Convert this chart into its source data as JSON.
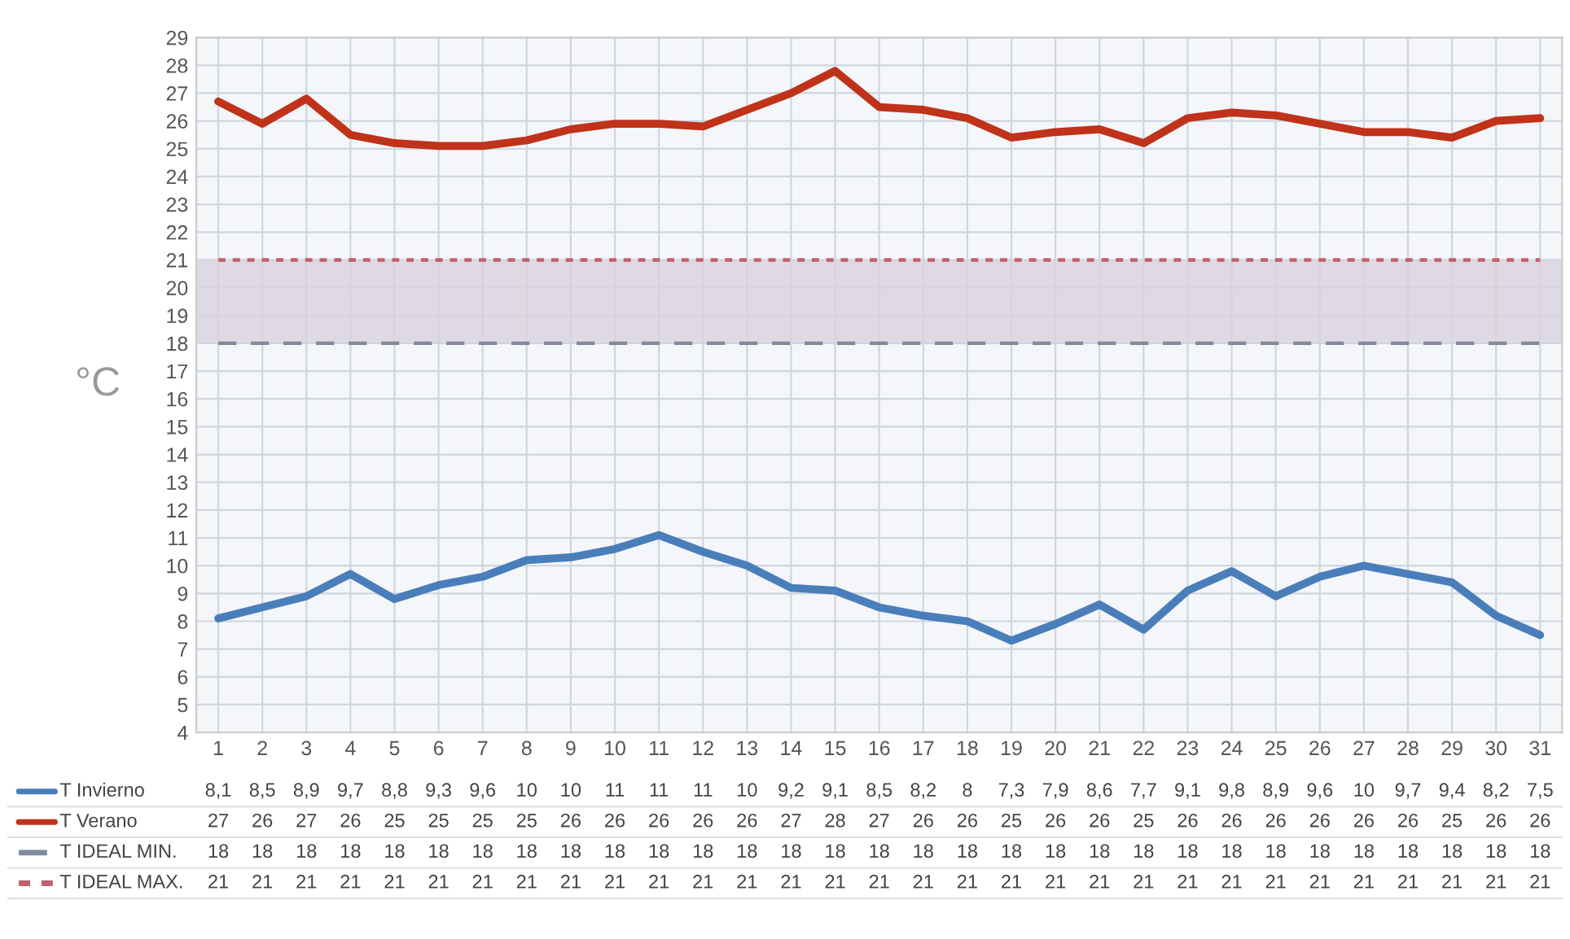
{
  "chart_data": {
    "type": "line",
    "ylabel": "°C",
    "categories": [
      "1",
      "2",
      "3",
      "4",
      "5",
      "6",
      "7",
      "8",
      "9",
      "10",
      "11",
      "12",
      "13",
      "14",
      "15",
      "16",
      "17",
      "18",
      "19",
      "20",
      "21",
      "22",
      "23",
      "24",
      "25",
      "26",
      "27",
      "28",
      "29",
      "30",
      "31"
    ],
    "series": [
      {
        "name": "T Invierno",
        "color": "#4a7ebb",
        "line_style": "solid",
        "values": [
          8.1,
          8.5,
          8.9,
          9.7,
          8.8,
          9.3,
          9.6,
          10.2,
          10.3,
          10.6,
          11.1,
          10.5,
          10.0,
          9.2,
          9.1,
          8.5,
          8.2,
          8.0,
          7.3,
          7.9,
          8.6,
          7.7,
          9.1,
          9.8,
          8.9,
          9.6,
          10.0,
          9.7,
          9.4,
          8.2,
          7.5
        ],
        "value_labels": [
          "8,1",
          "8,5",
          "8,9",
          "9,7",
          "8,8",
          "9,3",
          "9,6",
          "10",
          "10",
          "11",
          "11",
          "11",
          "10",
          "9,2",
          "9,1",
          "8,5",
          "8,2",
          "8",
          "7,3",
          "7,9",
          "8,6",
          "7,7",
          "9,1",
          "9,8",
          "8,9",
          "9,6",
          "10",
          "9,7",
          "9,4",
          "8,2",
          "7,5"
        ]
      },
      {
        "name": "T Verano",
        "color": "#c0321a",
        "line_style": "solid",
        "values": [
          26.7,
          25.9,
          26.8,
          25.5,
          25.2,
          25.1,
          25.1,
          25.3,
          25.7,
          25.9,
          25.9,
          25.8,
          26.4,
          27.0,
          27.8,
          26.5,
          26.4,
          26.1,
          25.4,
          25.6,
          25.7,
          25.2,
          26.1,
          26.3,
          26.2,
          25.9,
          25.6,
          25.6,
          25.4,
          26.0,
          26.1
        ],
        "value_labels": [
          "27",
          "26",
          "27",
          "26",
          "25",
          "25",
          "25",
          "25",
          "26",
          "26",
          "26",
          "26",
          "26",
          "27",
          "28",
          "27",
          "26",
          "26",
          "25",
          "26",
          "26",
          "25",
          "26",
          "26",
          "26",
          "26",
          "26",
          "26",
          "25",
          "26",
          "26"
        ]
      },
      {
        "name": "T IDEAL MIN.",
        "color": "#7f8aa0",
        "line_style": "dashed",
        "values": [
          18,
          18,
          18,
          18,
          18,
          18,
          18,
          18,
          18,
          18,
          18,
          18,
          18,
          18,
          18,
          18,
          18,
          18,
          18,
          18,
          18,
          18,
          18,
          18,
          18,
          18,
          18,
          18,
          18,
          18,
          18
        ],
        "value_labels": [
          "18",
          "18",
          "18",
          "18",
          "18",
          "18",
          "18",
          "18",
          "18",
          "18",
          "18",
          "18",
          "18",
          "18",
          "18",
          "18",
          "18",
          "18",
          "18",
          "18",
          "18",
          "18",
          "18",
          "18",
          "18",
          "18",
          "18",
          "18",
          "18",
          "18",
          "18"
        ]
      },
      {
        "name": "T IDEAL MAX.",
        "color": "#c0606a",
        "line_style": "dotted",
        "values": [
          21,
          21,
          21,
          21,
          21,
          21,
          21,
          21,
          21,
          21,
          21,
          21,
          21,
          21,
          21,
          21,
          21,
          21,
          21,
          21,
          21,
          21,
          21,
          21,
          21,
          21,
          21,
          21,
          21,
          21,
          21
        ],
        "value_labels": [
          "21",
          "21",
          "21",
          "21",
          "21",
          "21",
          "21",
          "21",
          "21",
          "21",
          "21",
          "21",
          "21",
          "21",
          "21",
          "21",
          "21",
          "21",
          "21",
          "21",
          "21",
          "21",
          "21",
          "21",
          "21",
          "21",
          "21",
          "21",
          "21",
          "21",
          "21"
        ]
      }
    ],
    "bands": [
      {
        "axis": "y",
        "from": 18,
        "to": 21,
        "color": "#d8d2dc"
      }
    ],
    "ylim": [
      4,
      29
    ],
    "yticks": [
      4,
      5,
      6,
      7,
      8,
      9,
      10,
      11,
      12,
      13,
      14,
      15,
      16,
      17,
      18,
      19,
      20,
      21,
      22,
      23,
      24,
      25,
      26,
      27,
      28,
      29
    ],
    "grid": true,
    "legend": "bottom",
    "marker": "none"
  }
}
